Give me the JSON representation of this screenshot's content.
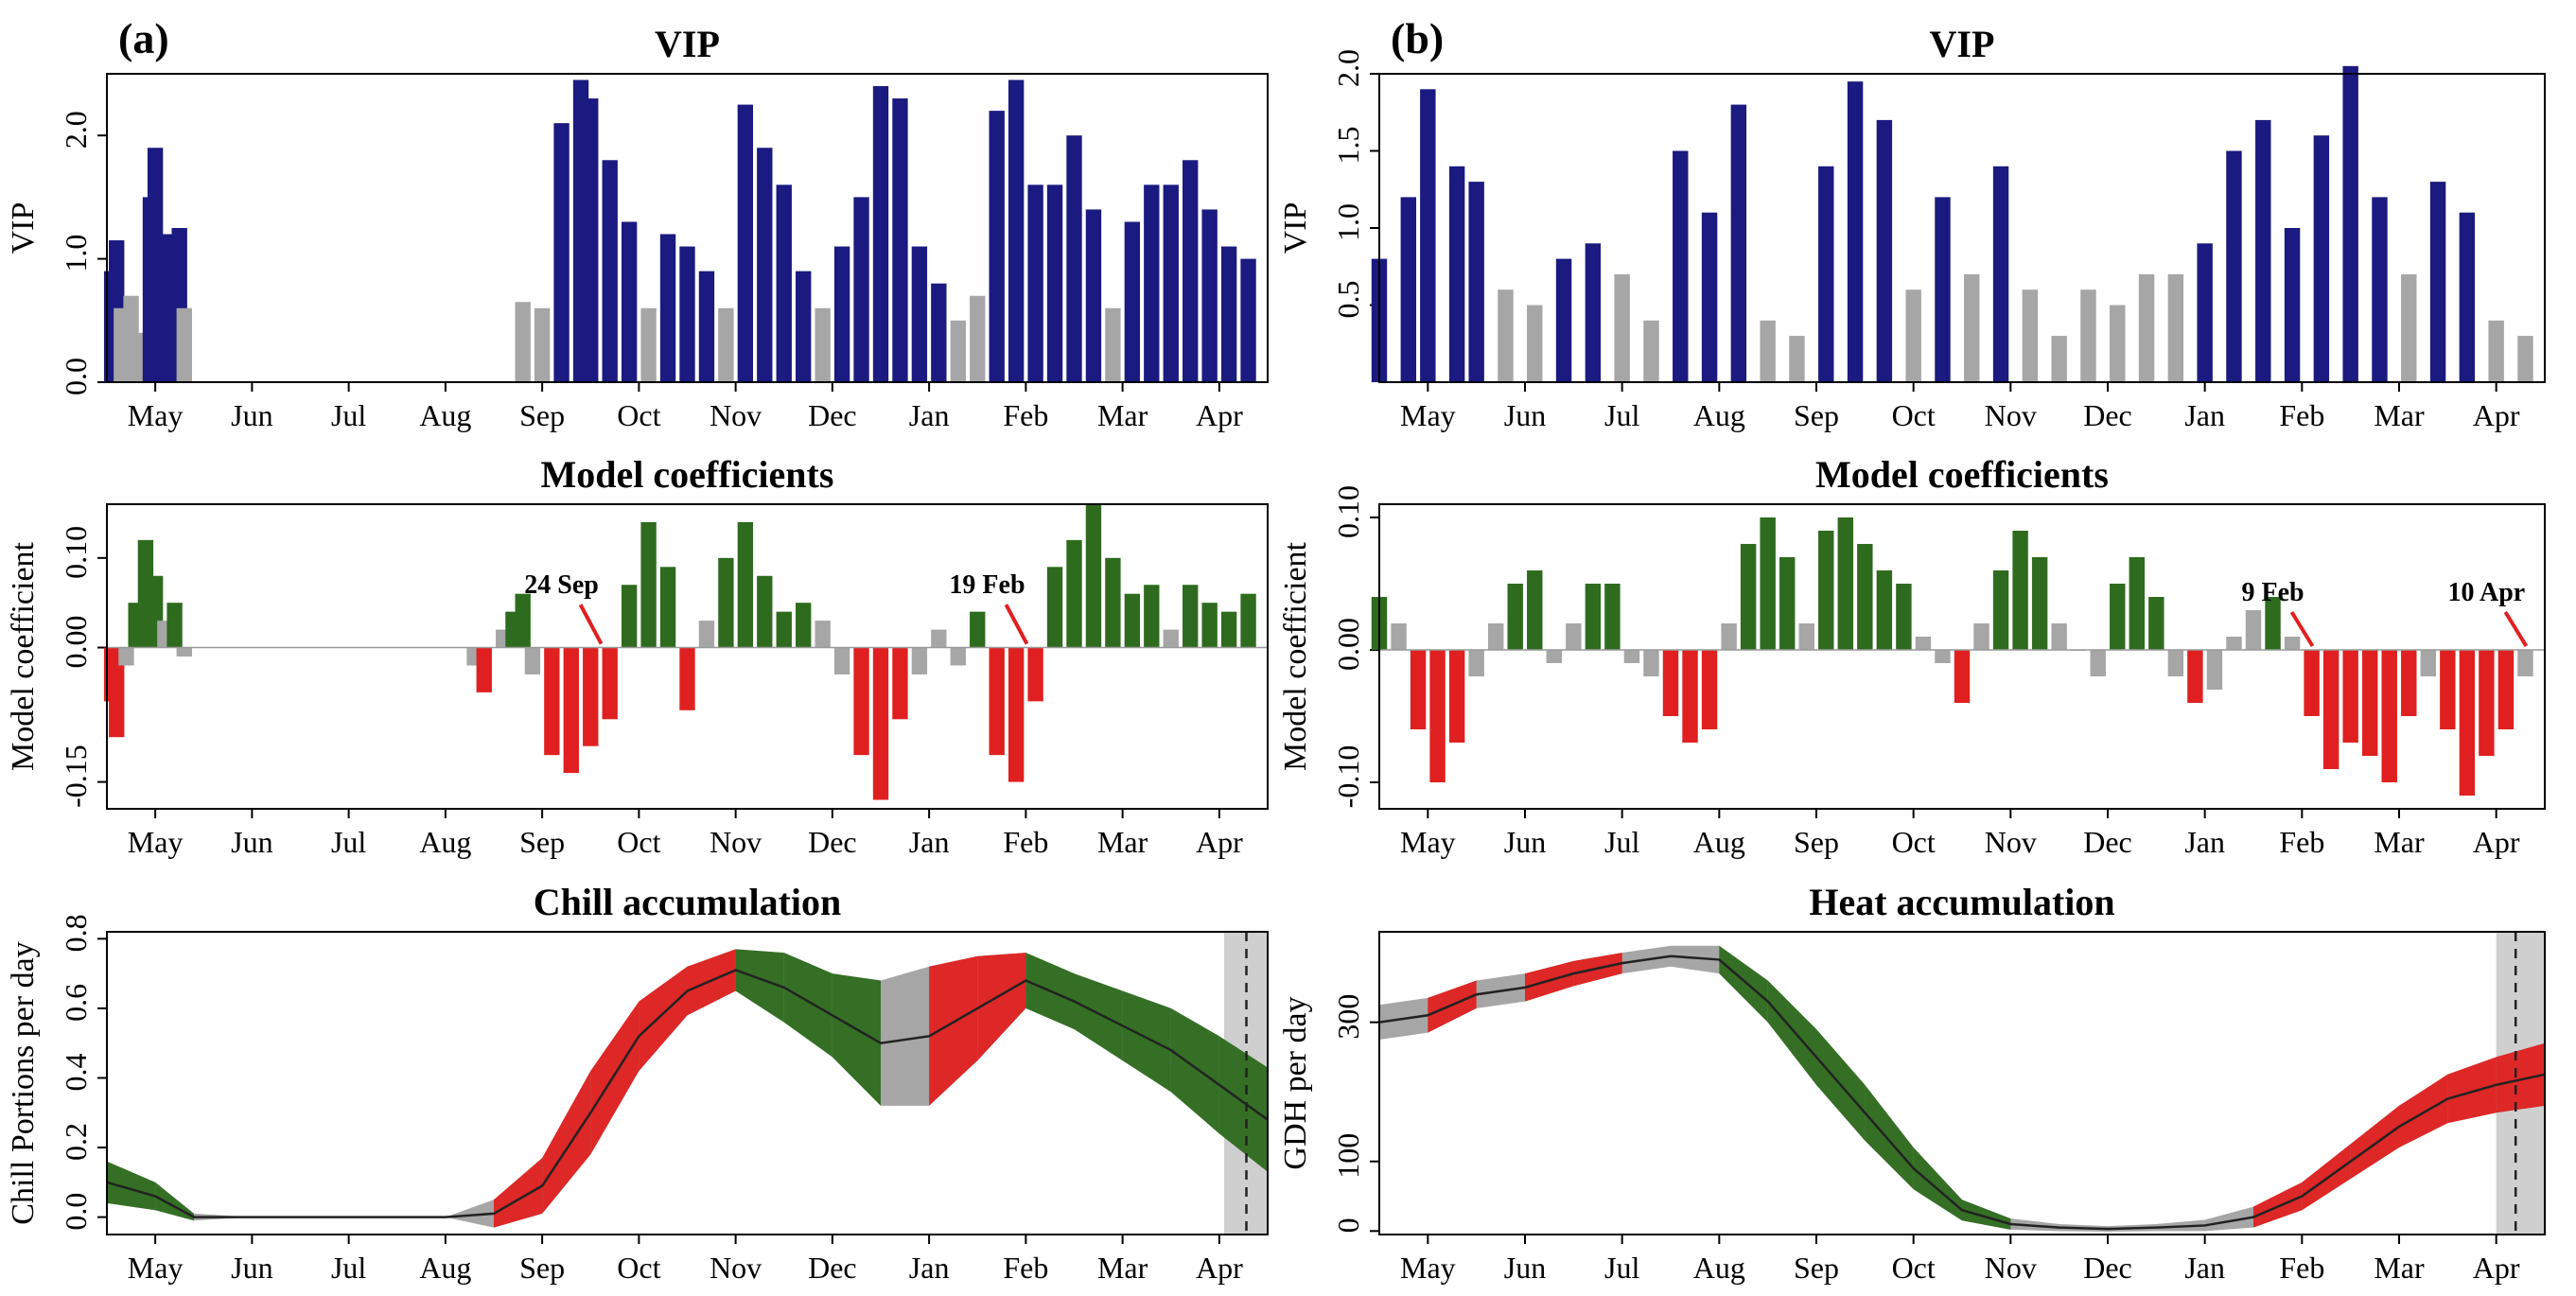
{
  "panels": [
    {
      "letter": "(a)"
    },
    {
      "letter": "(b)"
    }
  ],
  "colors": {
    "vip_important": "#1a1a80",
    "vip_unimportant": "#a6a6a6",
    "coef_positive": "#2e6b1e",
    "coef_negative": "#e02020",
    "neutral": "#a6a6a6",
    "band": "#cfcfcf"
  },
  "chart_data": [
    {
      "id": "a-vip",
      "type": "bar",
      "title": "VIP",
      "ylabel": "VIP",
      "ylim": [
        0,
        2.5
      ],
      "yticks": [
        "0.0",
        "1.0",
        "2.0"
      ],
      "ytick_values": [
        0,
        1,
        2
      ],
      "months": [
        "May",
        "Jun",
        "Jul",
        "Aug",
        "Sep",
        "Oct",
        "Nov",
        "Dec",
        "Jan",
        "Feb",
        "Mar",
        "Apr"
      ],
      "series": [
        {
          "x": [
            0.05,
            0.1,
            0.15,
            0.25,
            0.35,
            0.45,
            0.5,
            0.6,
            0.65,
            0.75,
            0.8,
            4.3,
            4.5,
            4.7,
            4.9,
            5.0,
            5.2,
            5.4,
            5.6,
            5.8,
            6.0,
            6.2,
            6.4,
            6.6,
            6.8,
            7.0,
            7.2,
            7.4,
            7.6,
            7.8,
            8.0,
            8.2,
            8.4,
            8.6,
            8.8,
            9.0,
            9.2,
            9.4,
            9.6,
            9.8,
            10.0,
            10.2,
            10.4,
            10.6,
            10.8,
            11.0,
            11.2,
            11.4,
            11.6,
            11.8
          ],
          "values": [
            0.9,
            1.15,
            0.6,
            0.7,
            0.4,
            1.5,
            1.9,
            1.2,
            1.0,
            1.25,
            0.6,
            0.65,
            0.6,
            2.1,
            2.45,
            2.3,
            1.8,
            1.3,
            0.6,
            1.2,
            1.1,
            0.9,
            0.6,
            2.25,
            1.9,
            1.6,
            0.9,
            0.6,
            1.1,
            1.5,
            2.4,
            2.3,
            1.1,
            0.8,
            0.5,
            0.7,
            2.2,
            2.45,
            1.6,
            1.6,
            2.0,
            1.4,
            0.6,
            1.3,
            1.6,
            1.6,
            1.8,
            1.4,
            1.1,
            1.0
          ]
        }
      ]
    },
    {
      "id": "b-vip",
      "type": "bar",
      "title": "VIP",
      "ylabel": "VIP",
      "ylim": [
        0,
        2.0
      ],
      "yticks": [
        "0.5",
        "1.0",
        "1.5",
        "2.0"
      ],
      "ytick_values": [
        0.5,
        1.0,
        1.5,
        2.0
      ],
      "months": [
        "May",
        "Jun",
        "Jul",
        "Aug",
        "Sep",
        "Oct",
        "Nov",
        "Dec",
        "Jan",
        "Feb",
        "Mar",
        "Apr"
      ],
      "series": [
        {
          "x": [
            0.0,
            0.3,
            0.5,
            0.8,
            1.0,
            1.3,
            1.6,
            1.9,
            2.2,
            2.5,
            2.8,
            3.1,
            3.4,
            3.7,
            4.0,
            4.3,
            4.6,
            4.9,
            5.2,
            5.5,
            5.8,
            6.1,
            6.4,
            6.7,
            7.0,
            7.3,
            7.6,
            7.9,
            8.2,
            8.5,
            8.8,
            9.1,
            9.4,
            9.7,
            10.0,
            10.3,
            10.6,
            10.9,
            11.2,
            11.5,
            11.8
          ],
          "values": [
            0.8,
            1.2,
            1.9,
            1.4,
            1.3,
            0.6,
            0.5,
            0.8,
            0.9,
            0.7,
            0.4,
            1.5,
            1.1,
            1.8,
            0.4,
            0.3,
            1.4,
            1.95,
            1.7,
            0.6,
            1.2,
            0.7,
            1.4,
            0.6,
            0.3,
            0.6,
            0.5,
            0.7,
            0.7,
            0.9,
            1.5,
            1.7,
            1.0,
            1.6,
            2.05,
            1.2,
            0.7,
            1.3,
            1.1,
            0.4,
            0.3
          ]
        }
      ]
    },
    {
      "id": "a-coef",
      "type": "bar",
      "title": "Model coefficients",
      "ylabel": "Model coefficient",
      "ylim": [
        -0.18,
        0.16
      ],
      "yticks": [
        "-0.15",
        "0.00",
        "0.10"
      ],
      "ytick_values": [
        -0.15,
        0.0,
        0.1
      ],
      "months": [
        "May",
        "Jun",
        "Jul",
        "Aug",
        "Sep",
        "Oct",
        "Nov",
        "Dec",
        "Jan",
        "Feb",
        "Mar",
        "Apr"
      ],
      "annotations": [
        {
          "text": "24 Sep",
          "x": 4.7,
          "y": 0.05
        },
        {
          "text": "19 Feb",
          "x": 9.1,
          "y": 0.05
        }
      ],
      "series": [
        {
          "x": [
            0.05,
            0.1,
            0.2,
            0.3,
            0.4,
            0.5,
            0.6,
            0.7,
            0.8,
            3.8,
            3.9,
            4.1,
            4.2,
            4.3,
            4.4,
            4.6,
            4.8,
            5.0,
            5.2,
            5.4,
            5.6,
            5.8,
            6.0,
            6.2,
            6.4,
            6.6,
            6.8,
            7.0,
            7.2,
            7.4,
            7.6,
            7.8,
            8.0,
            8.2,
            8.4,
            8.6,
            8.8,
            9.0,
            9.2,
            9.4,
            9.6,
            9.8,
            10.0,
            10.2,
            10.4,
            10.6,
            10.8,
            11.0,
            11.2,
            11.4,
            11.6,
            11.8
          ],
          "values": [
            -0.06,
            -0.1,
            -0.02,
            0.05,
            0.12,
            0.08,
            0.03,
            0.05,
            -0.01,
            -0.02,
            -0.05,
            0.02,
            0.04,
            0.06,
            -0.03,
            -0.12,
            -0.14,
            -0.11,
            -0.08,
            0.07,
            0.14,
            0.09,
            -0.07,
            0.03,
            0.1,
            0.14,
            0.08,
            0.04,
            0.05,
            0.03,
            -0.03,
            -0.12,
            -0.17,
            -0.08,
            -0.03,
            0.02,
            -0.02,
            0.04,
            -0.12,
            -0.15,
            -0.06,
            0.09,
            0.12,
            0.16,
            0.1,
            0.06,
            0.07,
            0.02,
            0.07,
            0.05,
            0.04,
            0.06
          ]
        }
      ]
    },
    {
      "id": "b-coef",
      "type": "bar",
      "title": "Model coefficients",
      "ylabel": "Model coefficient",
      "ylim": [
        -0.12,
        0.11
      ],
      "yticks": [
        "-0.10",
        "0.00",
        "0.10"
      ],
      "ytick_values": [
        -0.1,
        0.0,
        0.1
      ],
      "months": [
        "May",
        "Jun",
        "Jul",
        "Aug",
        "Sep",
        "Oct",
        "Nov",
        "Dec",
        "Jan",
        "Feb",
        "Mar",
        "Apr"
      ],
      "annotations": [
        {
          "text": "9 Feb",
          "x": 9.2,
          "y": 0.03
        },
        {
          "text": "10 Apr",
          "x": 11.4,
          "y": 0.03
        }
      ],
      "series": [
        {
          "x": [
            0.0,
            0.2,
            0.4,
            0.6,
            0.8,
            1.0,
            1.2,
            1.4,
            1.6,
            1.8,
            2.0,
            2.2,
            2.4,
            2.6,
            2.8,
            3.0,
            3.2,
            3.4,
            3.6,
            3.8,
            4.0,
            4.2,
            4.4,
            4.6,
            4.8,
            5.0,
            5.2,
            5.4,
            5.6,
            5.8,
            6.0,
            6.2,
            6.4,
            6.6,
            6.8,
            7.0,
            7.2,
            7.4,
            7.6,
            7.8,
            8.0,
            8.2,
            8.4,
            8.6,
            8.8,
            9.0,
            9.2,
            9.4,
            9.6,
            9.8,
            10.0,
            10.2,
            10.4,
            10.6,
            10.8,
            11.0,
            11.2,
            11.4,
            11.6,
            11.8
          ],
          "values": [
            0.04,
            0.02,
            -0.06,
            -0.1,
            -0.07,
            -0.02,
            0.02,
            0.05,
            0.06,
            -0.01,
            0.02,
            0.05,
            0.05,
            -0.01,
            -0.02,
            -0.05,
            -0.07,
            -0.06,
            0.02,
            0.08,
            0.1,
            0.07,
            0.02,
            0.09,
            0.1,
            0.08,
            0.06,
            0.05,
            0.01,
            -0.01,
            -0.04,
            0.02,
            0.06,
            0.09,
            0.07,
            0.02,
            0.0,
            -0.02,
            0.05,
            0.07,
            0.04,
            -0.02,
            -0.04,
            -0.03,
            0.01,
            0.03,
            0.04,
            0.01,
            -0.05,
            -0.09,
            -0.07,
            -0.08,
            -0.1,
            -0.05,
            -0.02,
            -0.06,
            -0.11,
            -0.08,
            -0.06,
            -0.02
          ]
        }
      ]
    },
    {
      "id": "a-chill",
      "type": "area",
      "title": "Chill accumulation",
      "ylabel": "Chill Portions per day",
      "ylim": [
        -0.05,
        0.82
      ],
      "yticks": [
        "0.0",
        "0.2",
        "0.4",
        "0.6",
        "0.8"
      ],
      "ytick_values": [
        0,
        0.2,
        0.4,
        0.6,
        0.8
      ],
      "months": [
        "May",
        "Jun",
        "Jul",
        "Aug",
        "Sep",
        "Oct",
        "Nov",
        "Dec",
        "Jan",
        "Feb",
        "Mar",
        "Apr"
      ],
      "x": [
        0.0,
        0.5,
        0.9,
        1.5,
        2.5,
        3.5,
        4.0,
        4.5,
        5.0,
        5.5,
        6.0,
        6.5,
        7.0,
        7.5,
        8.0,
        8.5,
        9.0,
        9.5,
        10.0,
        10.5,
        11.0,
        11.5,
        12.0
      ],
      "values": [
        0.1,
        0.06,
        0.0,
        0.0,
        0.0,
        0.0,
        0.01,
        0.09,
        0.3,
        0.52,
        0.65,
        0.71,
        0.66,
        0.58,
        0.5,
        0.52,
        0.6,
        0.68,
        0.62,
        0.55,
        0.48,
        0.38,
        0.28
      ],
      "spread": [
        0.06,
        0.04,
        0.01,
        0.0,
        0.0,
        0.0,
        0.04,
        0.08,
        0.12,
        0.1,
        0.07,
        0.06,
        0.1,
        0.12,
        0.18,
        0.2,
        0.15,
        0.08,
        0.08,
        0.1,
        0.12,
        0.14,
        0.15
      ],
      "shaded_x": [
        11.55,
        12.0
      ],
      "dashed_x": 11.78
    },
    {
      "id": "b-heat",
      "type": "area",
      "title": "Heat accumulation",
      "ylabel": "GDH per day",
      "ylim": [
        -5,
        430
      ],
      "yticks": [
        "0",
        "100",
        "300"
      ],
      "ytick_values": [
        0,
        100,
        300
      ],
      "months": [
        "May",
        "Jun",
        "Jul",
        "Aug",
        "Sep",
        "Oct",
        "Nov",
        "Dec",
        "Jan",
        "Feb",
        "Mar",
        "Apr"
      ],
      "x": [
        0.0,
        0.5,
        1.0,
        1.5,
        2.0,
        2.5,
        3.0,
        3.5,
        4.0,
        4.5,
        5.0,
        5.5,
        6.0,
        6.5,
        7.0,
        7.5,
        8.0,
        8.5,
        9.0,
        9.5,
        10.0,
        10.5,
        11.0,
        11.5,
        12.0
      ],
      "values": [
        300,
        310,
        340,
        350,
        370,
        385,
        395,
        390,
        330,
        250,
        170,
        90,
        30,
        10,
        5,
        3,
        5,
        8,
        20,
        50,
        100,
        150,
        190,
        210,
        225
      ],
      "spread": [
        25,
        25,
        20,
        20,
        18,
        15,
        15,
        20,
        30,
        40,
        40,
        30,
        15,
        8,
        5,
        4,
        5,
        8,
        15,
        20,
        25,
        30,
        35,
        40,
        45
      ],
      "shaded_x": [
        11.5,
        12.0
      ],
      "dashed_x": 11.7
    }
  ]
}
